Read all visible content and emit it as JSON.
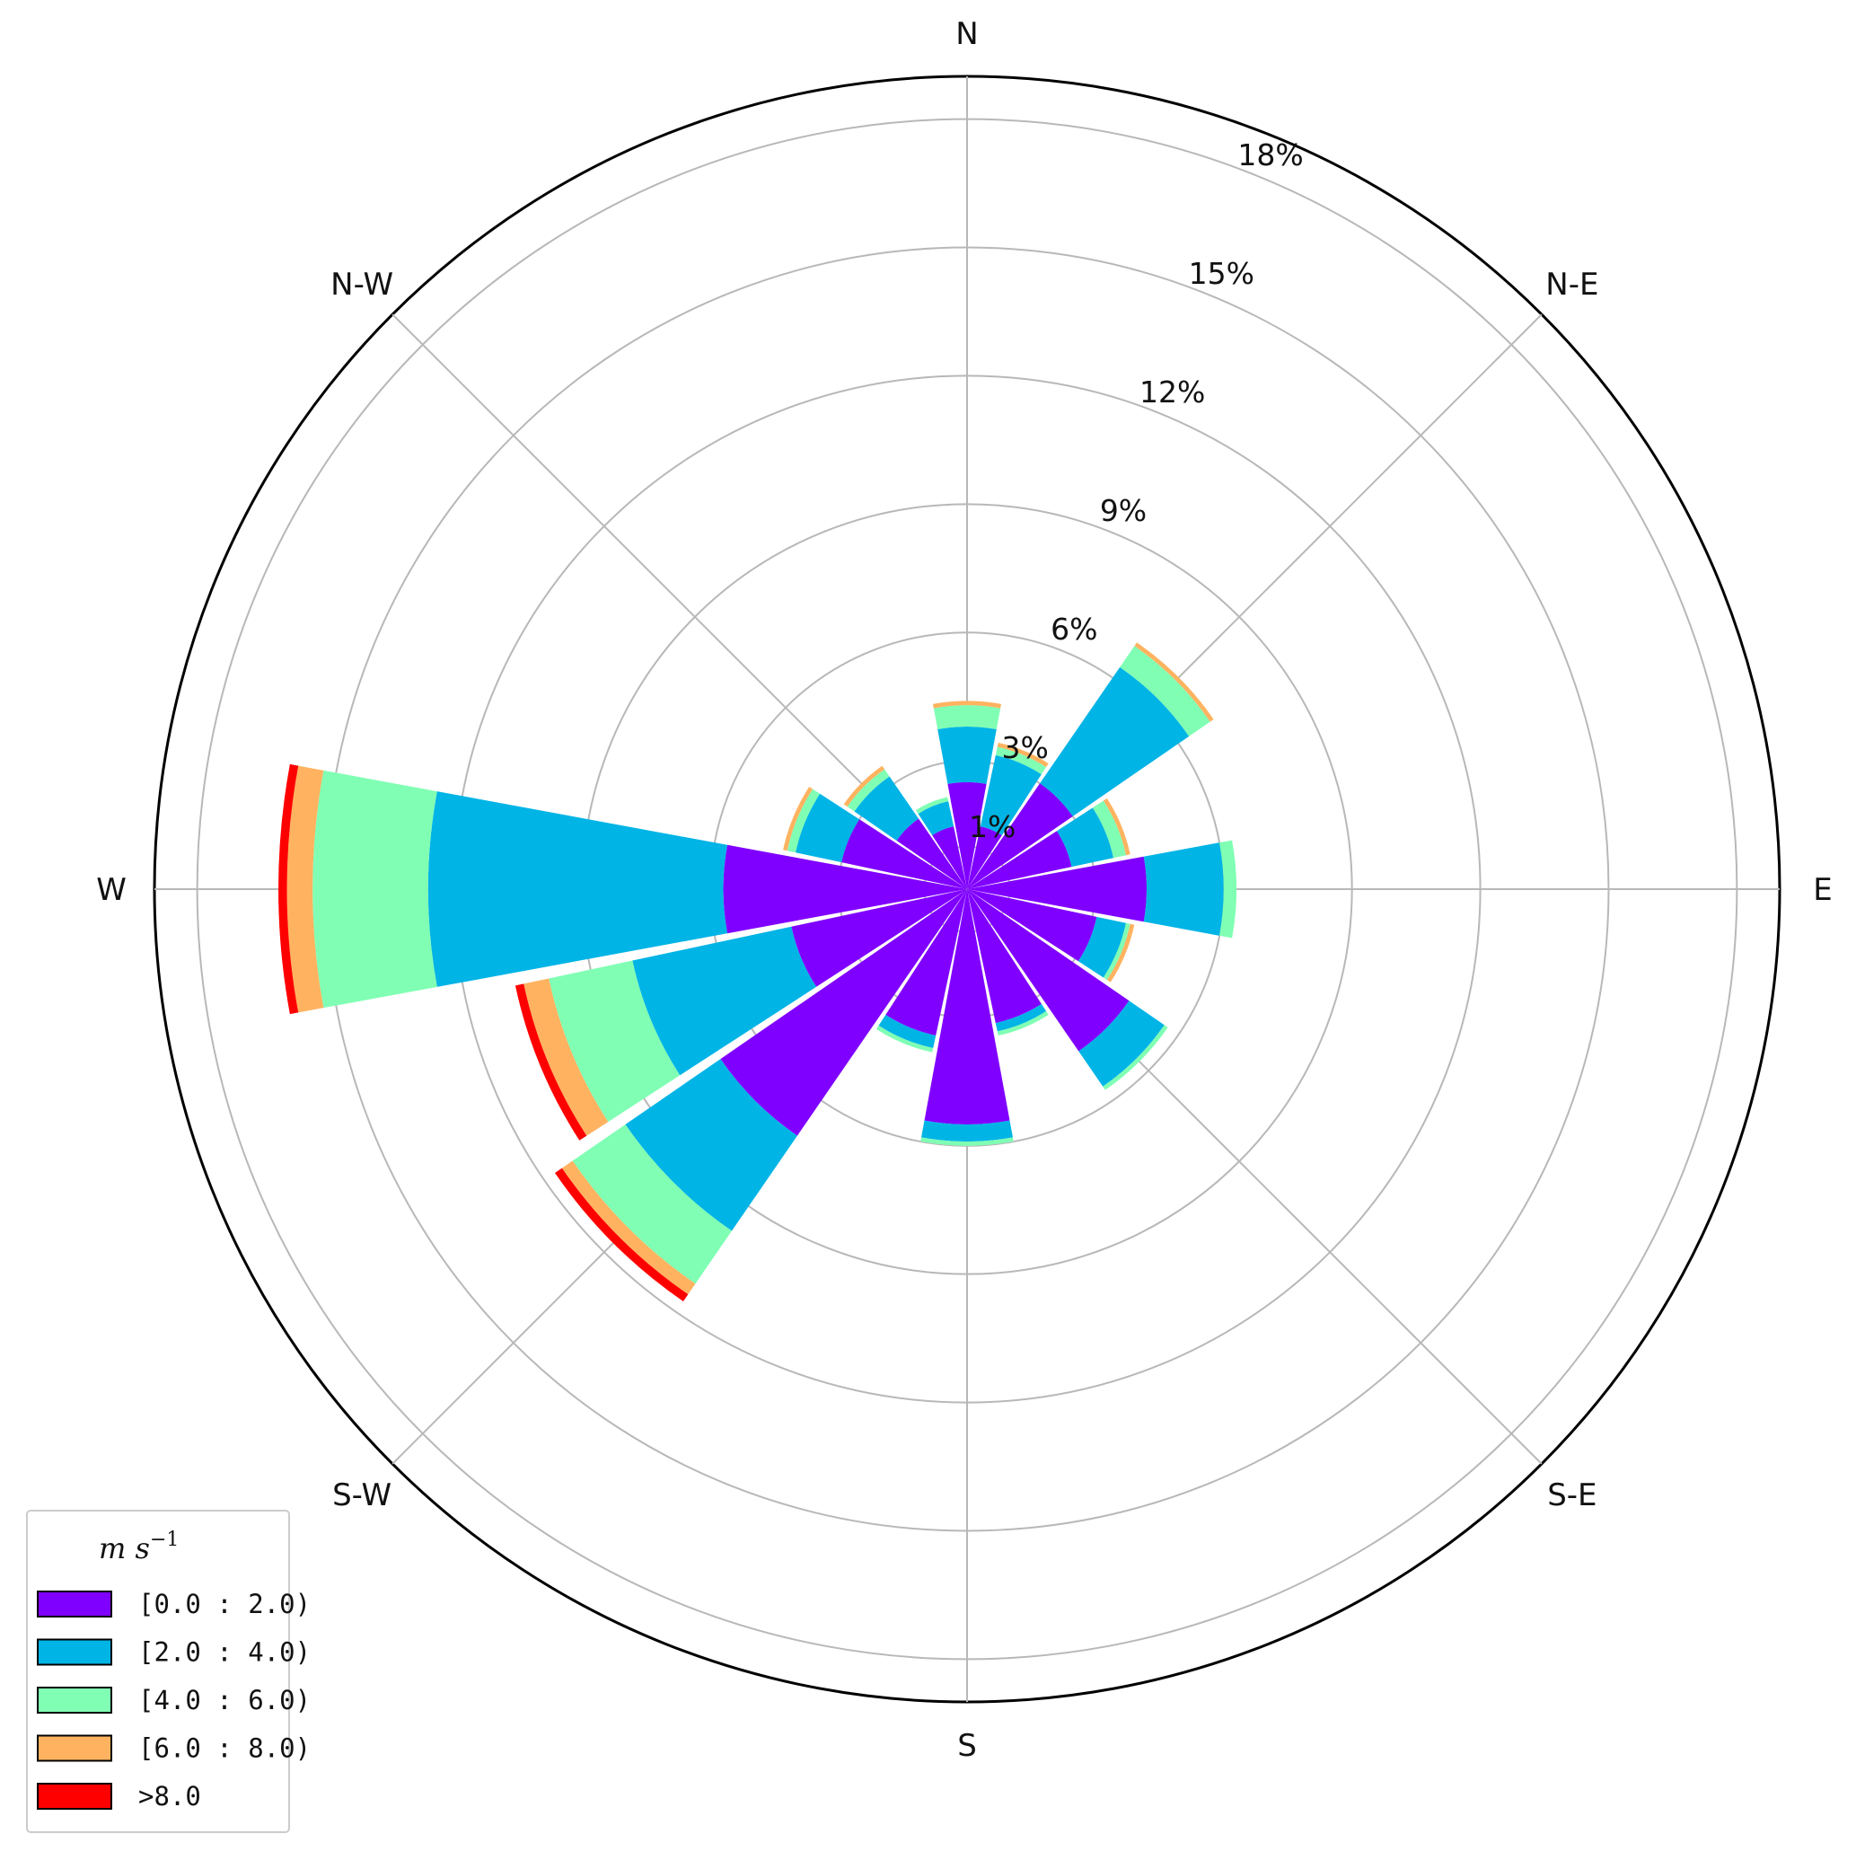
{
  "chart_data": {
    "type": "wind-rose",
    "directions": [
      "N",
      "NNE",
      "NE",
      "ENE",
      "E",
      "ESE",
      "SE",
      "SSE",
      "S",
      "SSW",
      "SW",
      "WSW",
      "W",
      "WNW",
      "NW",
      "NNW"
    ],
    "direction_labels": {
      "N": "N",
      "NE": "N-E",
      "E": "E",
      "SE": "S-E",
      "S": "S",
      "SW": "S-W",
      "W": "W",
      "NW": "N-W"
    },
    "radial_ticks": [
      1,
      3,
      6,
      9,
      12,
      15,
      18
    ],
    "radial_tick_labels": [
      "1%",
      "3%",
      "6%",
      "9%",
      "12%",
      "15%",
      "18%"
    ],
    "rmax": 19,
    "grid": true,
    "bins": [
      {
        "label": "[0.0 : 2.0)",
        "color": "#8000ff"
      },
      {
        "label": "[2.0 : 4.0)",
        "color": "#00b4e6"
      },
      {
        "label": "[4.0 : 6.0)",
        "color": "#80ffb4"
      },
      {
        "label": "[6.0 : 8.0)",
        "color": "#ffb360"
      },
      {
        "label": ">8.0",
        "color": "#ff0000"
      }
    ],
    "cumulative_values": {
      "N": [
        2.5,
        3.8,
        4.3,
        4.4,
        4.4
      ],
      "NNE": [
        1.5,
        3.2,
        3.4,
        3.5,
        3.5
      ],
      "NE": [
        3.0,
        6.3,
        6.9,
        7.0,
        7.0
      ],
      "ENE": [
        2.5,
        3.5,
        3.8,
        3.9,
        3.9
      ],
      "E": [
        4.2,
        6.0,
        6.3,
        6.3,
        6.3
      ],
      "ESE": [
        3.1,
        3.8,
        3.9,
        4.0,
        4.0
      ],
      "SE": [
        4.6,
        5.6,
        5.7,
        5.7,
        5.7
      ],
      "SSE": [
        3.2,
        3.4,
        3.5,
        3.5,
        3.5
      ],
      "S": [
        5.5,
        5.9,
        6.0,
        6.0,
        6.0
      ],
      "SSW": [
        3.5,
        3.8,
        3.9,
        3.9,
        3.9
      ],
      "SW": [
        7.0,
        9.7,
        11.2,
        11.5,
        11.7
      ],
      "WSW": [
        4.2,
        8.0,
        10.0,
        10.6,
        10.8
      ],
      "W": [
        5.7,
        12.6,
        15.3,
        15.9,
        16.1
      ],
      "WNW": [
        3.0,
        4.1,
        4.3,
        4.4,
        4.4
      ],
      "NW": [
        2.0,
        3.2,
        3.4,
        3.5,
        3.5
      ],
      "NNW": [
        1.5,
        2.1,
        2.2,
        2.2,
        2.2
      ]
    },
    "legend": {
      "title": "m s",
      "title_sup": "−1",
      "position": "lower-left"
    }
  }
}
